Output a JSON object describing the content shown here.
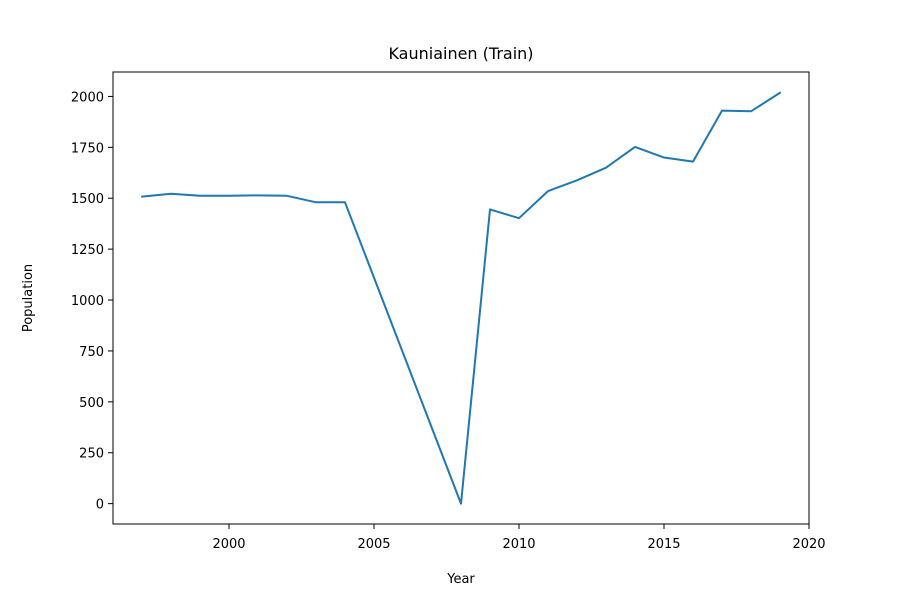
{
  "chart_data": {
    "type": "line",
    "title": "Kauniainen (Train)",
    "xlabel": "Year",
    "ylabel": "Population",
    "xlim": [
      1996,
      2020
    ],
    "ylim": [
      -100,
      2120
    ],
    "xticks": [
      2000,
      2005,
      2010,
      2015,
      2020
    ],
    "yticks": [
      0,
      250,
      500,
      750,
      1000,
      1250,
      1500,
      1750,
      2000
    ],
    "grid": false,
    "series_color": "#1f77b4",
    "series": [
      {
        "x": [
          1997,
          1998,
          1999,
          2000,
          2001,
          2002,
          2003,
          2004,
          2008,
          2009,
          2010,
          2011,
          2012,
          2013,
          2014,
          2015,
          2016,
          2017,
          2018,
          2019
        ],
        "values": [
          1508,
          1522,
          1512,
          1512,
          1514,
          1512,
          1480,
          1480,
          0,
          1445,
          1402,
          1535,
          1588,
          1650,
          1752,
          1700,
          1680,
          1930,
          1927,
          2018
        ]
      }
    ]
  }
}
